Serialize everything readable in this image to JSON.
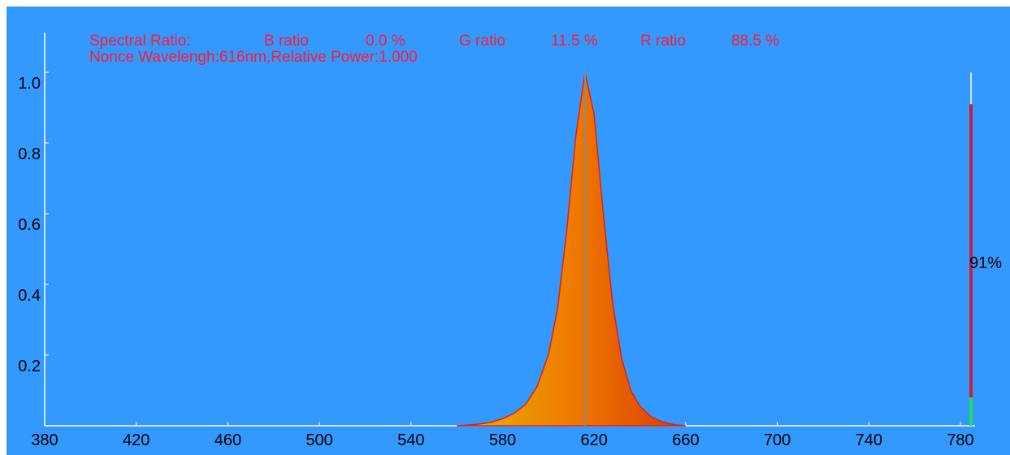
{
  "chart_data": {
    "type": "area",
    "ratio_title": "Spectral Ratio:",
    "ratios": [
      {
        "name": "B ratio",
        "label": "0.0 %"
      },
      {
        "name": "G ratio",
        "label": "11.5 %"
      },
      {
        "name": "R ratio",
        "label": "88.5 %"
      }
    ],
    "annotation": "Nonce Wavelengh:616nm,Relative Power:1.000",
    "peak_x": 616,
    "x": [
      560,
      565,
      570,
      575,
      580,
      585,
      590,
      595,
      600,
      604,
      608,
      612,
      616,
      620,
      624,
      628,
      632,
      636,
      640,
      645,
      650,
      655,
      660
    ],
    "series": [
      {
        "color": "#e02010",
        "values": [
          0,
          0.002,
          0.005,
          0.01,
          0.02,
          0.035,
          0.06,
          0.11,
          0.2,
          0.33,
          0.55,
          0.82,
          1.0,
          0.88,
          0.6,
          0.35,
          0.19,
          0.1,
          0.055,
          0.025,
          0.01,
          0.003,
          0
        ]
      }
    ],
    "gradient": [
      "#e8b400",
      "#f07a00",
      "#d83c00"
    ],
    "xlim": [
      380,
      780
    ],
    "xticks": [
      380,
      420,
      460,
      500,
      540,
      580,
      620,
      660,
      700,
      740,
      780
    ],
    "ylim": [
      0,
      1
    ],
    "yticks": [
      0.2,
      0.4,
      0.6,
      0.8,
      {
        "value": 1,
        "label": "1.0"
      }
    ],
    "gauge": {
      "value": 91,
      "value_label": "91%",
      "segments": [
        {
          "color": "#22dd55",
          "value": 8
        },
        {
          "color": "#c8203c",
          "value": 83
        }
      ]
    },
    "background": "#3399ff"
  }
}
